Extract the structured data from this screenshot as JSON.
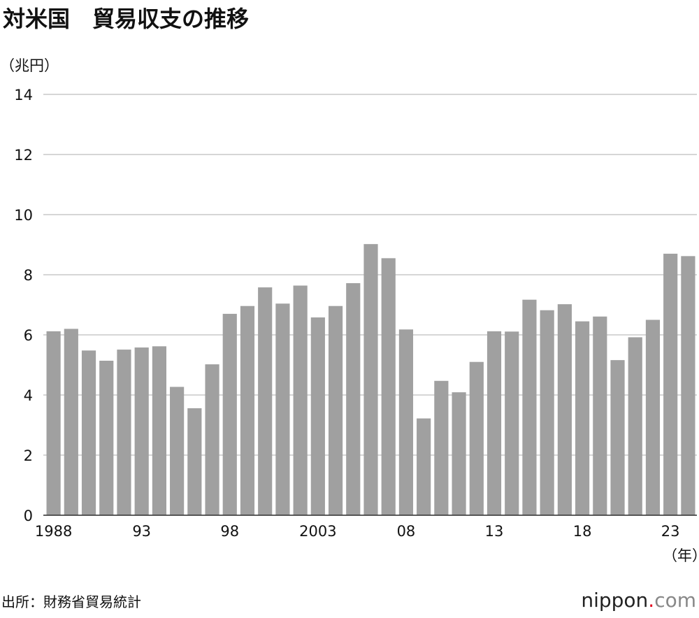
{
  "chart_data": {
    "type": "bar",
    "title": "対米国　貿易収支の推移",
    "y_unit": "（兆円）",
    "x_unit": "（年）",
    "source": "出所：財務省貿易統計",
    "logo": {
      "name": "nippon",
      "dot": ".",
      "suffix": "com"
    },
    "categories": [
      "1988",
      null,
      null,
      null,
      null,
      "93",
      null,
      null,
      null,
      null,
      "98",
      null,
      null,
      null,
      null,
      "2003",
      null,
      null,
      null,
      null,
      "08",
      null,
      null,
      null,
      null,
      "13",
      null,
      null,
      null,
      null,
      "18",
      null,
      null,
      null,
      null,
      "23",
      null
    ],
    "values": [
      6.12,
      6.2,
      5.48,
      5.14,
      5.51,
      5.58,
      5.62,
      4.27,
      3.56,
      5.02,
      6.7,
      6.96,
      7.58,
      7.04,
      7.64,
      6.58,
      6.96,
      7.72,
      9.02,
      8.55,
      6.18,
      3.22,
      4.47,
      4.09,
      5.1,
      6.12,
      6.11,
      7.17,
      6.82,
      7.02,
      6.45,
      6.61,
      5.16,
      5.92,
      6.5,
      8.7,
      8.62
    ],
    "color": "#a0a0a0",
    "ylim": [
      0,
      14
    ],
    "yticks": [
      0,
      2,
      4,
      6,
      8,
      10,
      12,
      14
    ],
    "grid": true
  }
}
